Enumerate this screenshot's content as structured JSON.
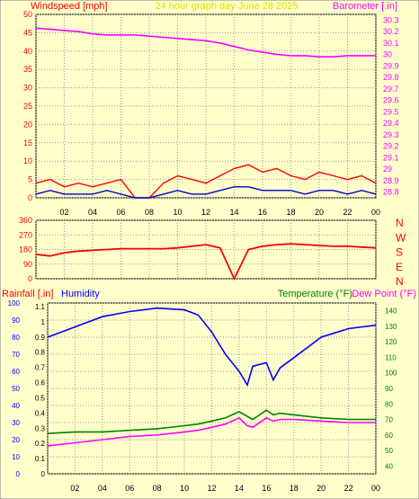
{
  "chart_data": [
    {
      "type": "line",
      "title": "24 hour graph day   June 28 2025",
      "ylabel": "Windspeed [mph]",
      "y2label": "Barometer [.in]",
      "x_ticks": [
        "02",
        "04",
        "06",
        "08",
        "10",
        "12",
        "14",
        "16",
        "18",
        "20",
        "22",
        "00"
      ],
      "y_ticks": [
        0,
        5,
        10,
        15,
        20,
        25,
        30,
        35,
        40,
        45,
        50
      ],
      "y2_ticks": [
        "28.8",
        "28.9",
        "29",
        "29.1",
        "29.2",
        "29.3",
        "29.4",
        "29.5",
        "29.6",
        "29.7",
        "29.8",
        "29.9",
        "30",
        "30.1",
        "30.2",
        "30.3"
      ],
      "ylim": [
        0,
        50
      ],
      "y2lim": [
        28.75,
        30.35
      ],
      "series": [
        {
          "name": "Windspeed",
          "color": "#ff0000",
          "x": [
            0,
            1,
            2,
            3,
            4,
            5,
            6,
            7,
            8,
            9,
            10,
            11,
            12,
            13,
            14,
            15,
            16,
            17,
            18,
            19,
            20,
            21,
            22,
            23,
            24
          ],
          "values": [
            4,
            5,
            3,
            4,
            3,
            4,
            5,
            0,
            0,
            4,
            6,
            5,
            4,
            6,
            8,
            9,
            7,
            8,
            6,
            5,
            7,
            6,
            5,
            6,
            4
          ]
        },
        {
          "name": "Wind gust",
          "color": "#0000cc",
          "x": [
            0,
            1,
            2,
            3,
            4,
            5,
            6,
            7,
            8,
            9,
            10,
            11,
            12,
            13,
            14,
            15,
            16,
            17,
            18,
            19,
            20,
            21,
            22,
            23,
            24
          ],
          "values": [
            1,
            2,
            1,
            1,
            1,
            2,
            1,
            0,
            0,
            1,
            2,
            1,
            1,
            2,
            3,
            3,
            2,
            2,
            2,
            1,
            2,
            2,
            1,
            2,
            1
          ]
        },
        {
          "name": "Barometer",
          "color": "#ff00ff",
          "x": [
            0,
            1,
            2,
            3,
            4,
            5,
            6,
            7,
            8,
            9,
            10,
            11,
            12,
            13,
            14,
            15,
            16,
            17,
            18,
            19,
            20,
            21,
            22,
            23,
            24
          ],
          "values": [
            30.23,
            30.22,
            30.21,
            30.2,
            30.18,
            30.17,
            30.17,
            30.17,
            30.16,
            30.15,
            30.14,
            30.13,
            30.12,
            30.1,
            30.07,
            30.04,
            30.02,
            30.0,
            29.99,
            29.99,
            29.98,
            29.98,
            29.99,
            29.99,
            29.99
          ]
        }
      ]
    },
    {
      "type": "line",
      "title": "",
      "y_ticks": [
        0,
        90,
        180,
        270,
        360
      ],
      "compass": [
        "N",
        "W",
        "S",
        "E",
        "N"
      ],
      "ylim": [
        0,
        360
      ],
      "series": [
        {
          "name": "Wind direction",
          "color": "#ff0000",
          "x": [
            0,
            1,
            2,
            3,
            4,
            5,
            6,
            7,
            8,
            9,
            10,
            11,
            12,
            13,
            14,
            15,
            16,
            17,
            18,
            19,
            20,
            21,
            22,
            23,
            24
          ],
          "values": [
            150,
            140,
            160,
            170,
            175,
            180,
            185,
            185,
            185,
            185,
            190,
            200,
            210,
            190,
            0,
            180,
            200,
            210,
            215,
            210,
            205,
            200,
            200,
            195,
            190
          ]
        }
      ]
    },
    {
      "type": "line",
      "title": "",
      "ylabel": "Rainfall [.in]",
      "ylabel2": "Humidity",
      "y2label": "Temperature (°F)",
      "y2label2": "Dew Point (°F)",
      "x_ticks": [
        "02",
        "04",
        "06",
        "08",
        "10",
        "12",
        "14",
        "16",
        "18",
        "20",
        "22",
        "00"
      ],
      "y_ticks_humidity": [
        0,
        10,
        20,
        30,
        40,
        50,
        60,
        70,
        80,
        90,
        100
      ],
      "y_ticks_rain": [
        "0",
        "0.1",
        "0.2",
        "0.3",
        "0.4",
        "0.5",
        "0.6",
        "0.7",
        "0.8",
        "0.9",
        "1",
        "1.1"
      ],
      "y2_ticks": [
        40,
        50,
        60,
        70,
        80,
        90,
        100,
        110,
        120,
        130,
        140
      ],
      "ylim": [
        0,
        100
      ],
      "y2lim": [
        35,
        145
      ],
      "series": [
        {
          "name": "Humidity",
          "color": "#0000ff",
          "x": [
            0,
            2,
            4,
            6,
            8,
            10,
            11,
            12,
            13,
            14,
            14.6,
            15,
            16,
            16.5,
            17,
            18,
            20,
            22,
            24
          ],
          "values": [
            80,
            86,
            92,
            95,
            97,
            96,
            93,
            83,
            70,
            60,
            52,
            63,
            65,
            55,
            62,
            68,
            80,
            85,
            87
          ]
        },
        {
          "name": "Temperature",
          "color": "#008000",
          "x": [
            0,
            2,
            4,
            6,
            8,
            10,
            11,
            12,
            13,
            14,
            14.6,
            15,
            16,
            16.5,
            17,
            18,
            20,
            22,
            24
          ],
          "values": [
            61,
            62,
            62,
            63,
            64,
            66,
            67,
            69,
            71,
            75,
            72,
            70,
            76,
            73,
            74,
            73,
            71,
            70,
            70
          ]
        },
        {
          "name": "Dew Point",
          "color": "#ff00ff",
          "x": [
            0,
            2,
            4,
            6,
            8,
            10,
            11,
            12,
            13,
            14,
            14.6,
            15,
            16,
            16.5,
            17,
            18,
            20,
            22,
            24
          ],
          "values": [
            53,
            55,
            57,
            59,
            60,
            62,
            63,
            65,
            67,
            71,
            66,
            65,
            71,
            69,
            70,
            70,
            69,
            68,
            68
          ]
        }
      ]
    }
  ]
}
